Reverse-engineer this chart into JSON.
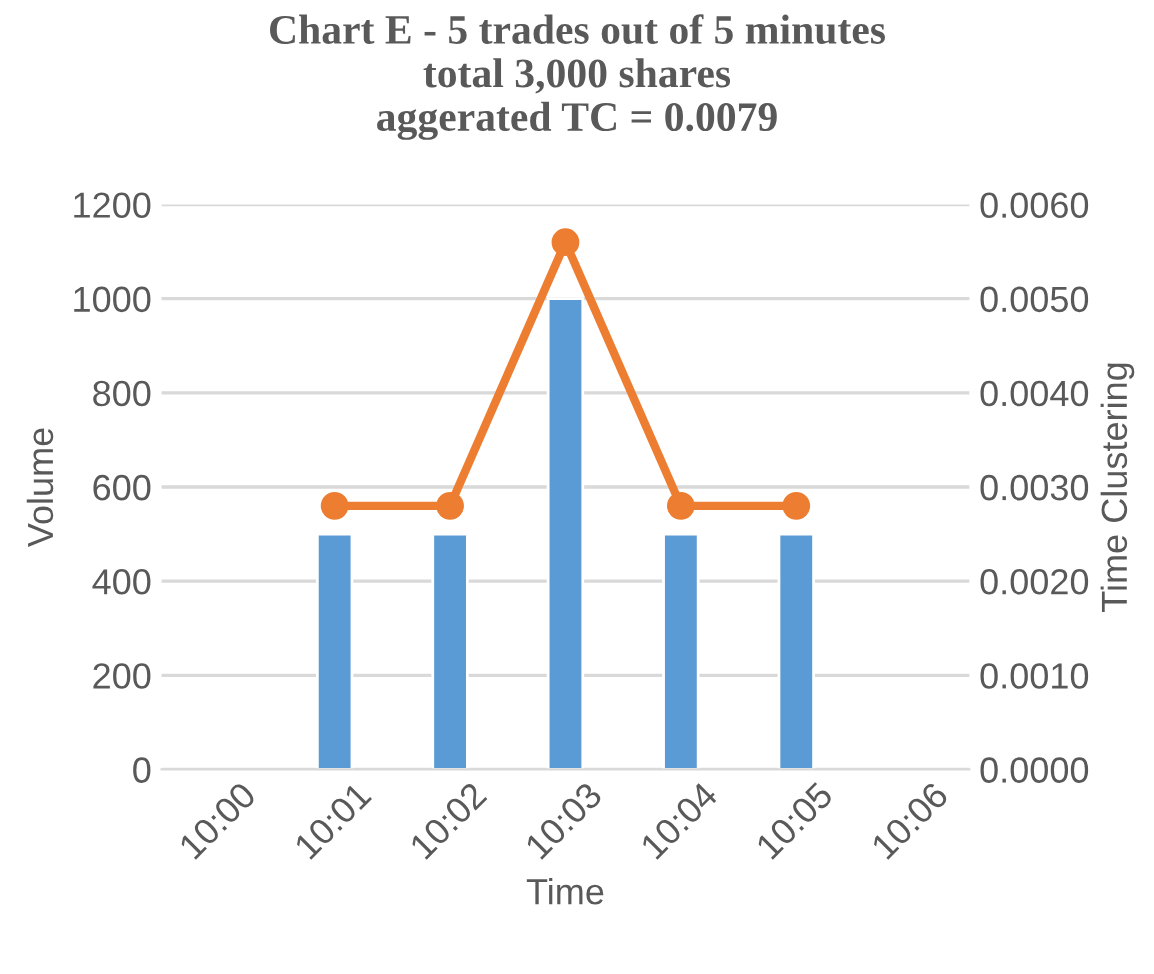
{
  "chart_data": {
    "type": "bar",
    "title": "Chart E - 5 trades out of 5 minutes\ntotal 3,000 shares\naggerated TC = 0.0079",
    "xlabel": "Time",
    "ylabel": "Volume",
    "y2label": "Time Clustering",
    "categories": [
      "10:00",
      "10:01",
      "10:02",
      "10:03",
      "10:04",
      "10:05",
      "10:06"
    ],
    "series": [
      {
        "color": "#5b9bd5",
        "values": [
          null,
          500,
          500,
          1000,
          500,
          500,
          null
        ]
      },
      {
        "type": "line",
        "axis": "y2",
        "color": "#ed7d31",
        "marker": "circle",
        "values": [
          null,
          0.0028,
          0.0028,
          0.0056,
          0.0028,
          0.0028,
          null
        ]
      }
    ],
    "ylim": [
      0,
      1200
    ],
    "yticks": [
      0,
      200,
      400,
      600,
      800,
      1000,
      1200
    ],
    "y2lim": [
      0,
      0.006
    ],
    "y2ticks": [
      {
        "value": 0,
        "label": "0.0000"
      },
      {
        "value": 0.001,
        "label": "0.0010"
      },
      {
        "value": 0.002,
        "label": "0.0020"
      },
      {
        "value": 0.003,
        "label": "0.0030"
      },
      {
        "value": 0.004,
        "label": "0.0040"
      },
      {
        "value": 0.005,
        "label": "0.0050"
      },
      {
        "value": 0.006,
        "label": "0.0060"
      }
    ],
    "grid": "y",
    "legend": false
  }
}
